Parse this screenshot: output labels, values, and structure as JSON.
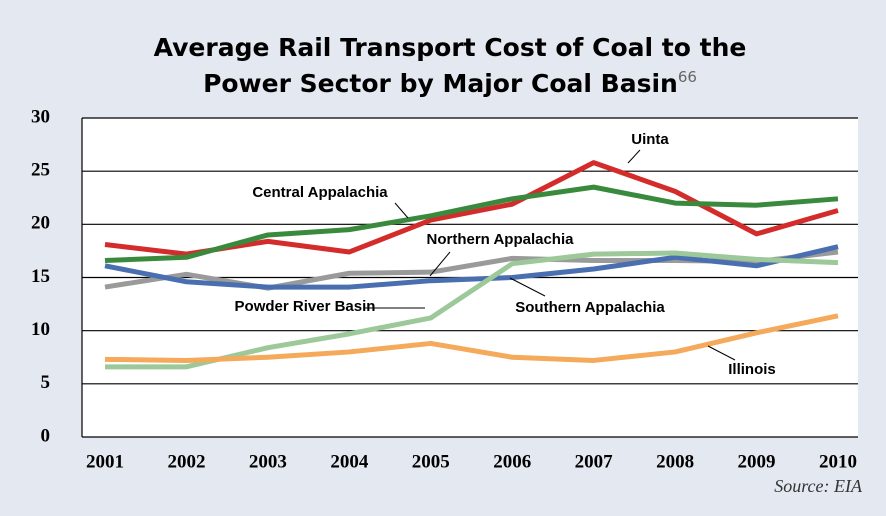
{
  "chart_data": {
    "type": "line",
    "title": "Average Rail Transport Cost of Coal to the Power Sector by Major Coal Basin",
    "title_note": "66",
    "source": "Source: EIA",
    "x": [
      2001,
      2002,
      2003,
      2004,
      2005,
      2006,
      2007,
      2008,
      2009,
      2010
    ],
    "xlim": [
      2001,
      2010
    ],
    "xticks": [
      2001,
      2002,
      2003,
      2004,
      2005,
      2006,
      2007,
      2008,
      2009,
      2010
    ],
    "ylim": [
      0,
      30
    ],
    "yticks": [
      0,
      5,
      10,
      15,
      20,
      25,
      30
    ],
    "grid": true,
    "series": [
      {
        "name": "Uinta",
        "color": "#d42b2b",
        "values": [
          18.1,
          17.2,
          18.4,
          17.4,
          20.4,
          21.9,
          25.8,
          23.1,
          19.1,
          21.3
        ]
      },
      {
        "name": "Central Appalachia",
        "color": "#3a8a3e",
        "values": [
          16.6,
          16.9,
          19.0,
          19.5,
          20.8,
          22.4,
          23.5,
          22.0,
          21.8,
          22.4
        ]
      },
      {
        "name": "Northern Appalachia",
        "color": "#9a9a9a",
        "values": [
          14.1,
          15.3,
          14.0,
          15.4,
          15.5,
          16.8,
          16.6,
          16.6,
          16.5,
          17.4
        ]
      },
      {
        "name": "Powder River Basin",
        "color": "#4a6fb0",
        "values": [
          16.1,
          14.6,
          14.1,
          14.1,
          14.7,
          15.0,
          15.8,
          16.9,
          16.1,
          17.9
        ]
      },
      {
        "name": "Southern Appalachia",
        "color": "#9cc89a",
        "values": [
          6.6,
          6.6,
          8.4,
          9.7,
          11.2,
          16.3,
          17.2,
          17.3,
          16.7,
          16.4
        ]
      },
      {
        "name": "Illinois",
        "color": "#f5a95a",
        "values": [
          7.3,
          7.2,
          7.5,
          8.0,
          8.8,
          7.5,
          7.2,
          8.0,
          9.8,
          11.4
        ]
      }
    ]
  }
}
